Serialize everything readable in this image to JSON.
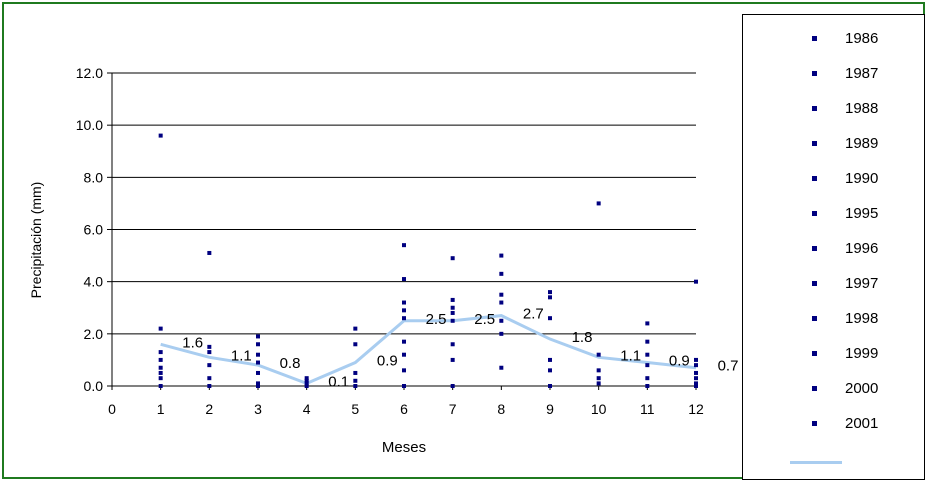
{
  "chart_data": {
    "type": "scatter",
    "xlabel": "Meses",
    "ylabel": "Precipitación (mm)",
    "xlim": [
      0,
      12
    ],
    "ylim": [
      0,
      12
    ],
    "x_ticks": [
      "0",
      "1",
      "2",
      "3",
      "4",
      "5",
      "6",
      "7",
      "8",
      "9",
      "10",
      "11",
      "12"
    ],
    "y_ticks": [
      "0.0",
      "2.0",
      "4.0",
      "6.0",
      "8.0",
      "10.0",
      "12.0"
    ],
    "grid": "horizontal",
    "legend_position": "right",
    "colors": {
      "points": "#000080",
      "line": "#a9cdf0",
      "grid": "#000000"
    },
    "series": [
      {
        "name": "1986",
        "points": [
          [
            1,
            9.6
          ],
          [
            6,
            3.2
          ],
          [
            10,
            7.0
          ]
        ]
      },
      {
        "name": "1987",
        "points": [
          [
            1,
            2.2
          ],
          [
            2,
            5.1
          ],
          [
            5,
            2.2
          ]
        ]
      },
      {
        "name": "1988",
        "points": [
          [
            1,
            1.3
          ],
          [
            3,
            1.9
          ],
          [
            6,
            5.4
          ],
          [
            7,
            4.9
          ],
          [
            8,
            5.0
          ]
        ]
      },
      {
        "name": "1989",
        "points": [
          [
            1,
            1.0
          ],
          [
            3,
            1.6
          ],
          [
            6,
            4.1
          ],
          [
            8,
            4.3
          ],
          [
            9,
            3.6
          ]
        ]
      },
      {
        "name": "1990",
        "points": [
          [
            1,
            0.7
          ],
          [
            2,
            1.5
          ],
          [
            7,
            3.3
          ],
          [
            9,
            3.4
          ],
          [
            11,
            2.4
          ]
        ]
      },
      {
        "name": "1995",
        "points": [
          [
            1,
            0.5
          ],
          [
            2,
            1.3
          ],
          [
            4,
            0.3
          ],
          [
            6,
            2.9
          ],
          [
            8,
            3.5
          ],
          [
            12,
            4.0
          ]
        ]
      },
      {
        "name": "1996",
        "points": [
          [
            1,
            0.3
          ],
          [
            3,
            1.2
          ],
          [
            5,
            1.6
          ],
          [
            7,
            3.0
          ],
          [
            9,
            2.6
          ],
          [
            11,
            1.7
          ]
        ]
      },
      {
        "name": "1997",
        "points": [
          [
            1,
            0.0
          ],
          [
            2,
            0.8
          ],
          [
            3,
            0.9
          ],
          [
            6,
            2.6
          ],
          [
            8,
            3.2
          ],
          [
            10,
            1.2
          ],
          [
            12,
            1.0
          ]
        ]
      },
      {
        "name": "1998",
        "points": [
          [
            2,
            0.3
          ],
          [
            3,
            0.5
          ],
          [
            4,
            0.2
          ],
          [
            6,
            1.7
          ],
          [
            7,
            2.8
          ],
          [
            9,
            1.0
          ],
          [
            11,
            1.2
          ],
          [
            12,
            0.8
          ]
        ]
      },
      {
        "name": "1999",
        "points": [
          [
            2,
            0.0
          ],
          [
            3,
            0.1
          ],
          [
            5,
            0.5
          ],
          [
            6,
            1.2
          ],
          [
            7,
            2.5
          ],
          [
            8,
            2.5
          ],
          [
            10,
            0.6
          ],
          [
            12,
            0.5
          ]
        ]
      },
      {
        "name": "2000",
        "points": [
          [
            3,
            0.0
          ],
          [
            4,
            0.0
          ],
          [
            5,
            0.2
          ],
          [
            6,
            0.6
          ],
          [
            7,
            1.6
          ],
          [
            8,
            2.0
          ],
          [
            9,
            0.6
          ],
          [
            10,
            0.3
          ],
          [
            11,
            0.8
          ],
          [
            12,
            0.3
          ]
        ]
      },
      {
        "name": "2001",
        "points": [
          [
            4,
            0.1
          ],
          [
            5,
            0.0
          ],
          [
            6,
            0.0
          ],
          [
            7,
            1.0
          ],
          [
            7,
            0.0
          ],
          [
            8,
            0.7
          ],
          [
            9,
            0.0
          ],
          [
            10,
            0.1
          ],
          [
            11,
            0.3
          ],
          [
            11,
            0.0
          ],
          [
            12,
            0.1
          ],
          [
            12,
            0.0
          ]
        ]
      }
    ],
    "mean_line": {
      "name": "",
      "x": [
        1,
        2,
        3,
        4,
        5,
        6,
        7,
        8,
        9,
        10,
        11,
        12
      ],
      "y": [
        1.6,
        1.1,
        0.8,
        0.1,
        0.9,
        2.5,
        2.5,
        2.7,
        1.8,
        1.1,
        0.9,
        0.7
      ],
      "labels": [
        "1.6",
        "1.1",
        "0.8",
        "0.1",
        "0.9",
        "2.5",
        "2.5",
        "2.7",
        "1.8",
        "1.1",
        "0.9",
        "0.7"
      ]
    }
  }
}
